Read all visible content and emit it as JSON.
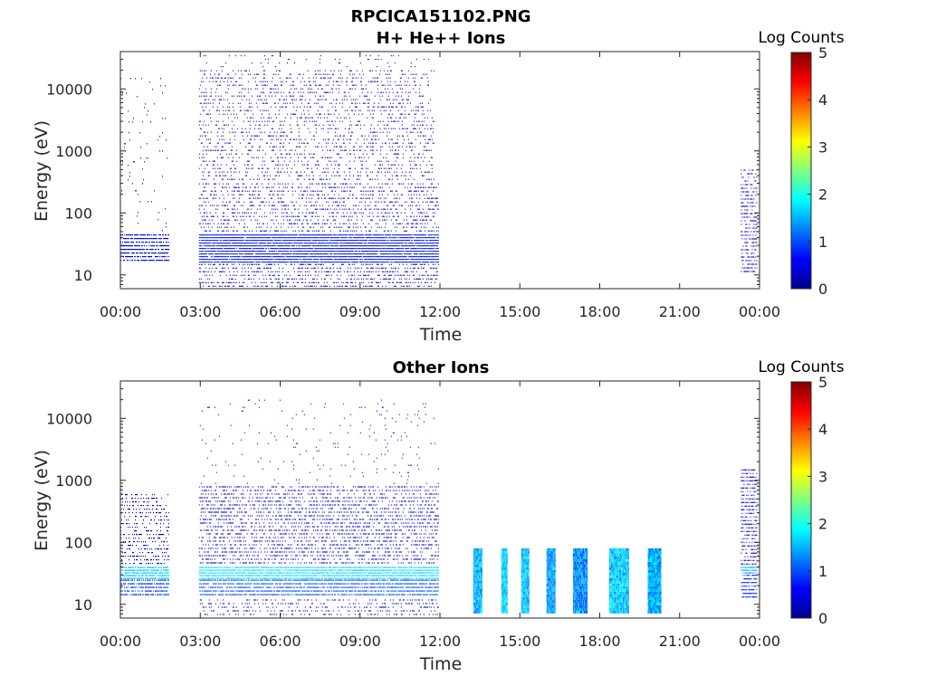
{
  "figure": {
    "title_line1": "RPCICA151102.PNG"
  },
  "colors": {
    "colormap": [
      "#00008f",
      "#0000ff",
      "#0080ff",
      "#00ffff",
      "#80ff80",
      "#ffff00",
      "#ff8000",
      "#ff0000",
      "#800000"
    ]
  },
  "chart_data": [
    {
      "type": "heatmap",
      "title": "H+ He++ Ions",
      "xlabel": "Time",
      "ylabel": "Energy (eV)",
      "x_ticks": [
        "00:00",
        "03:00",
        "06:00",
        "09:00",
        "12:00",
        "15:00",
        "18:00",
        "21:00",
        "00:00"
      ],
      "x_range_hours": [
        0,
        24
      ],
      "y_scale": "log",
      "y_ticks": [
        "10",
        "100",
        "1000",
        "10000"
      ],
      "y_range_eV": [
        6,
        40000
      ],
      "colorbar": {
        "label": "Log Counts",
        "ticks": [
          "0",
          "1",
          "2",
          "3",
          "4",
          "5"
        ],
        "range": [
          0,
          5
        ]
      },
      "grid": false,
      "regions": [
        {
          "t_start_h": 0.0,
          "t_end_h": 1.85,
          "e_min_eV": 15,
          "e_max_eV": 45,
          "log_counts": 0.6,
          "density": 0.8
        },
        {
          "t_start_h": 0.0,
          "t_end_h": 1.85,
          "e_min_eV": 45,
          "e_max_eV": 15000,
          "log_counts": 0.2,
          "density": 0.03
        },
        {
          "t_start_h": 2.95,
          "t_end_h": 11.95,
          "e_min_eV": 15,
          "e_max_eV": 45,
          "log_counts": 0.7,
          "density": 0.95
        },
        {
          "t_start_h": 2.95,
          "t_end_h": 11.95,
          "e_min_eV": 6,
          "e_max_eV": 15,
          "log_counts": 0.3,
          "density": 0.35
        },
        {
          "t_start_h": 2.95,
          "t_end_h": 11.95,
          "e_min_eV": 45,
          "e_max_eV": 300,
          "log_counts": 0.35,
          "density": 0.3
        },
        {
          "t_start_h": 2.95,
          "t_end_h": 11.8,
          "e_min_eV": 300,
          "e_max_eV": 20000,
          "log_counts": 0.3,
          "density": 0.22
        },
        {
          "t_start_h": 2.95,
          "t_end_h": 11.8,
          "e_min_eV": 20000,
          "e_max_eV": 35000,
          "log_counts": 0.2,
          "density": 0.05
        },
        {
          "t_start_h": 23.3,
          "t_end_h": 23.9,
          "e_min_eV": 10,
          "e_max_eV": 500,
          "log_counts": 0.4,
          "density": 0.45
        }
      ]
    },
    {
      "type": "heatmap",
      "title": "Other Ions",
      "xlabel": "Time",
      "ylabel": "Energy (eV)",
      "x_ticks": [
        "00:00",
        "03:00",
        "06:00",
        "09:00",
        "12:00",
        "15:00",
        "18:00",
        "21:00",
        "00:00"
      ],
      "x_range_hours": [
        0,
        24
      ],
      "y_scale": "log",
      "y_ticks": [
        "10",
        "100",
        "1000",
        "10000"
      ],
      "y_range_eV": [
        6,
        40000
      ],
      "colorbar": {
        "label": "Log Counts",
        "ticks": [
          "0",
          "1",
          "2",
          "3",
          "4",
          "5"
        ],
        "range": [
          0,
          5
        ]
      },
      "grid": false,
      "regions": [
        {
          "t_start_h": 0.0,
          "t_end_h": 1.85,
          "e_min_eV": 25,
          "e_max_eV": 40,
          "log_counts": 1.6,
          "density": 0.9
        },
        {
          "t_start_h": 0.0,
          "t_end_h": 1.85,
          "e_min_eV": 12,
          "e_max_eV": 25,
          "log_counts": 0.9,
          "density": 0.8
        },
        {
          "t_start_h": 0.0,
          "t_end_h": 1.85,
          "e_min_eV": 40,
          "e_max_eV": 600,
          "log_counts": 0.35,
          "density": 0.3
        },
        {
          "t_start_h": 2.95,
          "t_end_h": 11.95,
          "e_min_eV": 25,
          "e_max_eV": 40,
          "log_counts": 1.7,
          "density": 0.95
        },
        {
          "t_start_h": 2.95,
          "t_end_h": 11.95,
          "e_min_eV": 12,
          "e_max_eV": 25,
          "log_counts": 1.0,
          "density": 0.85
        },
        {
          "t_start_h": 2.95,
          "t_end_h": 11.95,
          "e_min_eV": 6,
          "e_max_eV": 12,
          "log_counts": 0.3,
          "density": 0.25
        },
        {
          "t_start_h": 2.95,
          "t_end_h": 11.95,
          "e_min_eV": 40,
          "e_max_eV": 800,
          "log_counts": 0.35,
          "density": 0.4
        },
        {
          "t_start_h": 2.95,
          "t_end_h": 11.95,
          "e_min_eV": 800,
          "e_max_eV": 20000,
          "log_counts": 0.2,
          "density": 0.03
        },
        {
          "t_start_h": 13.25,
          "t_end_h": 13.6,
          "e_min_eV": 7,
          "e_max_eV": 80,
          "log_counts": 1.5,
          "density": 1.0
        },
        {
          "t_start_h": 14.3,
          "t_end_h": 14.55,
          "e_min_eV": 7,
          "e_max_eV": 80,
          "log_counts": 1.7,
          "density": 1.0
        },
        {
          "t_start_h": 15.05,
          "t_end_h": 15.35,
          "e_min_eV": 7,
          "e_max_eV": 80,
          "log_counts": 1.6,
          "density": 1.0
        },
        {
          "t_start_h": 16.0,
          "t_end_h": 16.35,
          "e_min_eV": 7,
          "e_max_eV": 80,
          "log_counts": 1.4,
          "density": 1.0
        },
        {
          "t_start_h": 17.0,
          "t_end_h": 17.55,
          "e_min_eV": 7,
          "e_max_eV": 80,
          "log_counts": 1.3,
          "density": 1.0
        },
        {
          "t_start_h": 18.35,
          "t_end_h": 19.1,
          "e_min_eV": 7,
          "e_max_eV": 80,
          "log_counts": 1.6,
          "density": 1.0
        },
        {
          "t_start_h": 19.8,
          "t_end_h": 20.3,
          "e_min_eV": 7,
          "e_max_eV": 80,
          "log_counts": 1.5,
          "density": 1.0
        },
        {
          "t_start_h": 23.3,
          "t_end_h": 23.9,
          "e_min_eV": 30,
          "e_max_eV": 40,
          "log_counts": 1.5,
          "density": 0.9
        },
        {
          "t_start_h": 23.3,
          "t_end_h": 23.9,
          "e_min_eV": 12,
          "e_max_eV": 30,
          "log_counts": 0.8,
          "density": 0.8
        },
        {
          "t_start_h": 23.3,
          "t_end_h": 23.9,
          "e_min_eV": 40,
          "e_max_eV": 1500,
          "log_counts": 0.45,
          "density": 0.55
        }
      ]
    }
  ]
}
